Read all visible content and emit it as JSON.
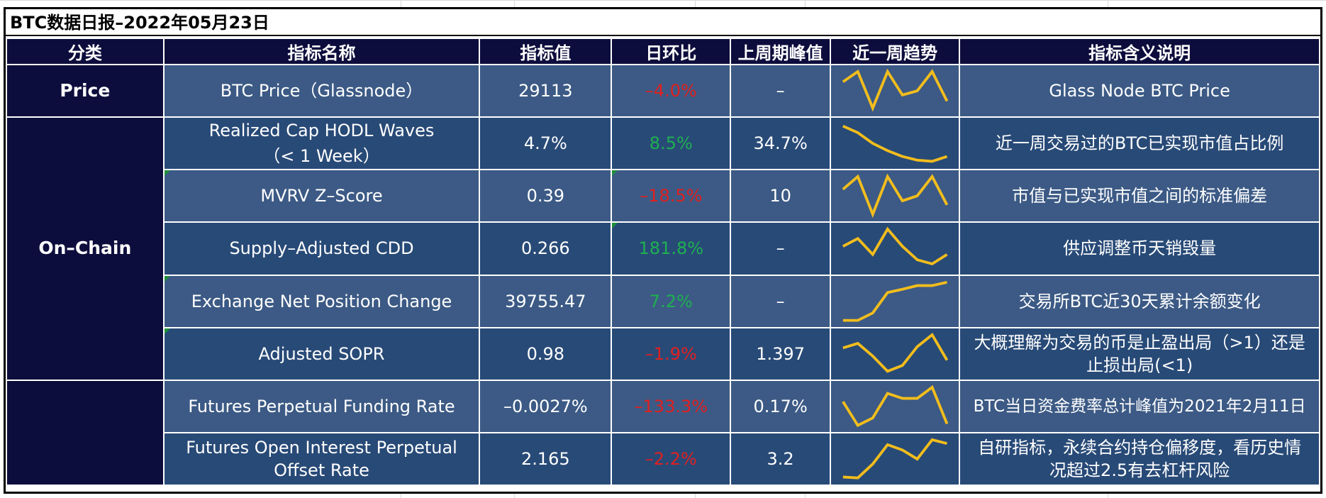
{
  "title": "BTC数据日报–2022年05月23日",
  "headers": {
    "category": "分类",
    "name": "指标名称",
    "value": "指标值",
    "change": "日环比",
    "peak": "上周期峰值",
    "trend": "近一周趋势",
    "desc": "指标含义说明"
  },
  "categories": {
    "price": "Price",
    "onchain": "On–Chain",
    "derivatives": ""
  },
  "colors": {
    "header_bg": "#0d0d3d",
    "row_light": "#3c5a85",
    "row_dark": "#284a77",
    "negative": "#e02020",
    "positive": "#1eb050",
    "sparkline": "#f2bd1d"
  },
  "rows": [
    {
      "name": "BTC Price（Glassnode）",
      "value": "29113",
      "change": "–4.0%",
      "peak": "–",
      "desc": "Glass Node BTC Price",
      "trend": [
        0.72,
        0.97,
        0.08,
        0.97,
        0.4,
        0.5,
        0.97,
        0.25
      ]
    },
    {
      "name_l1": "Realized Cap HODL Waves",
      "name_l2": "（< 1 Week）",
      "value": "4.7%",
      "change": "8.5%",
      "peak": "34.7%",
      "desc": "近一周交易过的BTC已实现市值占比例",
      "trend": [
        0.92,
        0.76,
        0.5,
        0.32,
        0.18,
        0.09,
        0.06,
        0.18
      ]
    },
    {
      "name": "MVRV Z–Score",
      "value": "0.39",
      "change": "–18.5%",
      "peak": "10",
      "desc": "市值与已实现市值之间的标准偏差",
      "trend": [
        0.66,
        0.97,
        0.05,
        0.97,
        0.38,
        0.5,
        0.97,
        0.28
      ]
    },
    {
      "name": "Supply–Adjusted CDD",
      "value": "0.266",
      "change": "181.8%",
      "peak": "–",
      "desc": "供应调整币天销毁量",
      "trend": [
        0.55,
        0.74,
        0.35,
        0.97,
        0.55,
        0.22,
        0.12,
        0.35
      ]
    },
    {
      "name": "Exchange Net Position Change",
      "value": "39755.47",
      "change": "7.2%",
      "peak": "–",
      "desc": "交易所BTC近30天累计余额变化",
      "trend": [
        0.04,
        0.04,
        0.22,
        0.72,
        0.8,
        0.89,
        0.89,
        0.97
      ]
    },
    {
      "name": "Adjusted SOPR",
      "value": "0.98",
      "change": "–1.9%",
      "peak": "1.397",
      "desc_l1": "大概理解为交易的币是止盈出局（>1）还是",
      "desc_l2": "止损出局(<1)",
      "trend": [
        0.65,
        0.76,
        0.45,
        0.08,
        0.22,
        0.68,
        0.97,
        0.35
      ]
    },
    {
      "name": "Futures Perpetual Funding Rate",
      "value": "–0.0027%",
      "change": "–133.3%",
      "peak": "0.17%",
      "desc": "BTC当日资金费率总计峰值为2021年2月11日",
      "trend": [
        0.62,
        0.04,
        0.22,
        0.82,
        0.7,
        0.7,
        0.97,
        0.08
      ]
    },
    {
      "name_l1": "Futures Open Interest Perpetual",
      "name_l2": "Offset Rate",
      "value": "2.165",
      "change": "–2.2%",
      "peak": "3.2",
      "desc_l1": "自研指标，永续合约持仓偏移度，看历史情",
      "desc_l2": "况超过2.5有去杠杆风险",
      "trend": [
        0.06,
        0.04,
        0.38,
        0.85,
        0.72,
        0.5,
        0.97,
        0.88
      ]
    }
  ]
}
